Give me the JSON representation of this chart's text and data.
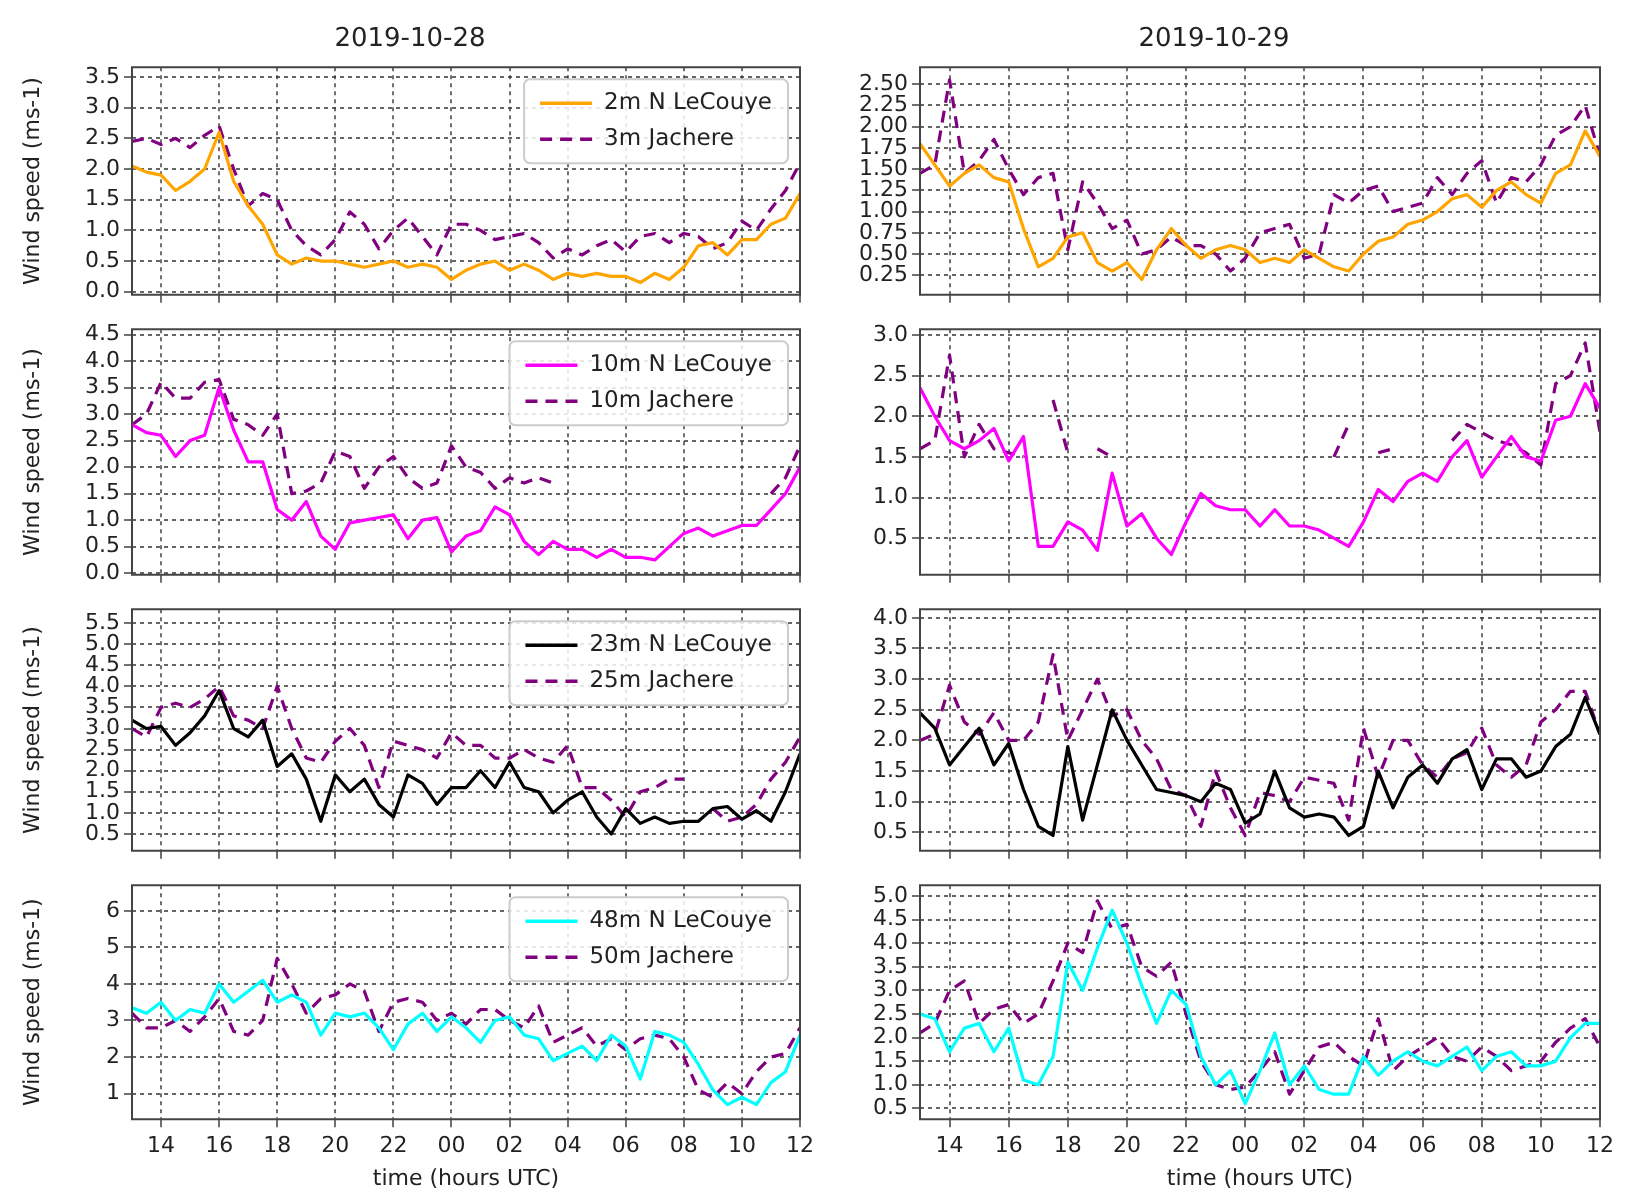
{
  "chart_data": [
    {
      "type": "line",
      "title": "2019-10-28",
      "ylabel": "Wind speed (ms-1)",
      "legend": "top right",
      "grid": true,
      "tick_labels": "y",
      "xlim": [
        "2019-10-28T13:00",
        "2019-10-29T12:00"
      ],
      "ylim": [
        -0.05,
        3.66
      ],
      "xticks": [
        {
          "value": "2019-10-28T14:00",
          "label": null
        },
        {
          "value": "2019-10-28T16:00",
          "label": null
        },
        {
          "value": "2019-10-28T18:00",
          "label": null
        },
        {
          "value": "2019-10-28T20:00",
          "label": null
        },
        {
          "value": "2019-10-28T22:00",
          "label": null
        },
        {
          "value": "2019-10-29T00:00",
          "label": null
        },
        {
          "value": "2019-10-29T02:00",
          "label": null
        },
        {
          "value": "2019-10-29T04:00",
          "label": null
        },
        {
          "value": "2019-10-29T06:00",
          "label": null
        },
        {
          "value": "2019-10-29T08:00",
          "label": null
        },
        {
          "value": "2019-10-29T10:00",
          "label": null
        },
        {
          "value": "2019-10-29T12:00",
          "label": null
        }
      ],
      "yticks": [
        {
          "value": 0,
          "label": "0.0"
        },
        0.5,
        {
          "value": 1,
          "label": "1.0"
        },
        1.5,
        {
          "value": 2,
          "label": "2.0"
        },
        2.5,
        {
          "value": 3,
          "label": "3.0"
        },
        3.5
      ],
      "x": [
        "2019-10-28T13:00",
        "2019-10-28T13:30",
        "2019-10-28T14:00",
        "2019-10-28T14:30",
        "2019-10-28T15:00",
        "2019-10-28T15:30",
        "2019-10-28T16:00",
        "2019-10-28T16:30",
        "2019-10-28T17:00",
        "2019-10-28T17:30",
        "2019-10-28T18:00",
        "2019-10-28T18:30",
        "2019-10-28T19:00",
        "2019-10-28T19:30",
        "2019-10-28T20:00",
        "2019-10-28T20:30",
        "2019-10-28T21:00",
        "2019-10-28T21:30",
        "2019-10-28T22:00",
        "2019-10-28T22:30",
        "2019-10-28T23:00",
        "2019-10-28T23:30",
        "2019-10-29T00:00",
        "2019-10-29T00:30",
        "2019-10-29T01:00",
        "2019-10-29T01:30",
        "2019-10-29T02:00",
        "2019-10-29T02:30",
        "2019-10-29T03:00",
        "2019-10-29T03:30",
        "2019-10-29T04:00",
        "2019-10-29T04:30",
        "2019-10-29T05:00",
        "2019-10-29T05:30",
        "2019-10-29T06:00",
        "2019-10-29T06:30",
        "2019-10-29T07:00",
        "2019-10-29T07:30",
        "2019-10-29T08:00",
        "2019-10-29T08:30",
        "2019-10-29T09:00",
        "2019-10-29T09:30",
        "2019-10-29T10:00",
        "2019-10-29T10:30",
        "2019-10-29T11:00",
        "2019-10-29T11:30",
        "2019-10-29T12:00"
      ],
      "series": [
        {
          "name": "2m N LeCouye",
          "color": "#ffa500",
          "line_style": "solid",
          "values": [
            2.05,
            1.95,
            1.9,
            1.65,
            1.8,
            2.0,
            2.6,
            1.8,
            1.4,
            1.1,
            0.6,
            0.45,
            0.55,
            0.5,
            0.5,
            0.45,
            0.4,
            0.45,
            0.5,
            0.4,
            0.45,
            0.4,
            0.2,
            0.35,
            0.45,
            0.5,
            0.35,
            0.45,
            0.35,
            0.2,
            0.3,
            0.25,
            0.3,
            0.25,
            0.25,
            0.15,
            0.3,
            0.2,
            0.4,
            0.75,
            0.8,
            0.6,
            0.85,
            0.85,
            1.1,
            1.2,
            1.6
          ]
        },
        {
          "name": "3m Jachere",
          "color": "#800080",
          "line_style": "dashed",
          "values": [
            2.45,
            2.5,
            2.4,
            2.5,
            2.35,
            2.55,
            2.7,
            2.0,
            1.4,
            1.6,
            1.5,
            1.0,
            0.75,
            0.6,
            0.85,
            1.3,
            1.1,
            0.7,
            1.0,
            1.2,
            0.9,
            0.6,
            1.1,
            1.1,
            1.0,
            0.85,
            0.9,
            0.95,
            0.8,
            0.55,
            0.7,
            0.6,
            0.75,
            0.85,
            0.65,
            0.9,
            0.95,
            0.8,
            0.95,
            0.9,
            0.7,
            0.8,
            1.15,
            1.0,
            1.35,
            1.65,
            2.1
          ]
        }
      ]
    },
    {
      "type": "line",
      "title": "2019-10-29",
      "grid": true,
      "tick_labels": "y",
      "xlim": [
        "2019-10-29T13:00",
        "2019-10-30T12:00"
      ],
      "ylim": [
        0.02,
        2.7
      ],
      "xticks": [
        {
          "value": "2019-10-29T14:00",
          "label": null
        },
        {
          "value": "2019-10-29T16:00",
          "label": null
        },
        {
          "value": "2019-10-29T18:00",
          "label": null
        },
        {
          "value": "2019-10-29T20:00",
          "label": null
        },
        {
          "value": "2019-10-29T22:00",
          "label": null
        },
        {
          "value": "2019-10-30T00:00",
          "label": null
        },
        {
          "value": "2019-10-30T02:00",
          "label": null
        },
        {
          "value": "2019-10-30T04:00",
          "label": null
        },
        {
          "value": "2019-10-30T06:00",
          "label": null
        },
        {
          "value": "2019-10-30T08:00",
          "label": null
        },
        {
          "value": "2019-10-30T10:00",
          "label": null
        },
        {
          "value": "2019-10-30T12:00",
          "label": null
        }
      ],
      "yticks": [
        0.25,
        {
          "value": 0.5,
          "label": "0.50"
        },
        0.75,
        {
          "value": 1,
          "label": "1.00"
        },
        1.25,
        {
          "value": 1.5,
          "label": "1.50"
        },
        1.75,
        {
          "value": 2,
          "label": "2.00"
        },
        2.25,
        {
          "value": 2.5,
          "label": "2.50"
        }
      ],
      "x": [
        "2019-10-29T13:00",
        "2019-10-29T13:30",
        "2019-10-29T14:00",
        "2019-10-29T14:30",
        "2019-10-29T15:00",
        "2019-10-29T15:30",
        "2019-10-29T16:00",
        "2019-10-29T16:30",
        "2019-10-29T17:00",
        "2019-10-29T17:30",
        "2019-10-29T18:00",
        "2019-10-29T18:30",
        "2019-10-29T19:00",
        "2019-10-29T19:30",
        "2019-10-29T20:00",
        "2019-10-29T20:30",
        "2019-10-29T21:00",
        "2019-10-29T21:30",
        "2019-10-29T22:00",
        "2019-10-29T22:30",
        "2019-10-29T23:00",
        "2019-10-29T23:30",
        "2019-10-30T00:00",
        "2019-10-30T00:30",
        "2019-10-30T01:00",
        "2019-10-30T01:30",
        "2019-10-30T02:00",
        "2019-10-30T02:30",
        "2019-10-30T03:00",
        "2019-10-30T03:30",
        "2019-10-30T04:00",
        "2019-10-30T04:30",
        "2019-10-30T05:00",
        "2019-10-30T05:30",
        "2019-10-30T06:00",
        "2019-10-30T06:30",
        "2019-10-30T07:00",
        "2019-10-30T07:30",
        "2019-10-30T08:00",
        "2019-10-30T08:30",
        "2019-10-30T09:00",
        "2019-10-30T09:30",
        "2019-10-30T10:00",
        "2019-10-30T10:30",
        "2019-10-30T11:00",
        "2019-10-30T11:30",
        "2019-10-30T12:00"
      ],
      "series": [
        {
          "color": "#ffa500",
          "line_style": "solid",
          "values": [
            1.8,
            1.55,
            1.3,
            1.45,
            1.55,
            1.4,
            1.35,
            0.8,
            0.35,
            0.45,
            0.7,
            0.75,
            0.4,
            0.3,
            0.4,
            0.2,
            0.55,
            0.8,
            0.6,
            0.45,
            0.55,
            0.6,
            0.55,
            0.4,
            0.45,
            0.4,
            0.55,
            0.45,
            0.35,
            0.3,
            0.5,
            0.65,
            0.7,
            0.85,
            0.9,
            1.0,
            1.15,
            1.2,
            1.05,
            1.25,
            1.35,
            1.2,
            1.1,
            1.45,
            1.55,
            1.95,
            1.65
          ]
        },
        {
          "color": "#800080",
          "line_style": "dashed",
          "values": [
            1.45,
            1.55,
            2.55,
            1.45,
            1.6,
            1.85,
            1.5,
            1.2,
            1.4,
            1.45,
            0.55,
            1.35,
            1.1,
            0.8,
            0.9,
            0.5,
            0.55,
            0.7,
            0.6,
            0.6,
            0.5,
            0.3,
            0.45,
            0.75,
            0.8,
            0.85,
            0.45,
            0.5,
            1.2,
            1.1,
            1.25,
            1.3,
            1.0,
            1.05,
            1.1,
            1.4,
            1.2,
            1.45,
            1.6,
            1.1,
            1.4,
            1.35,
            1.55,
            1.9,
            2.0,
            2.25,
            1.65
          ]
        }
      ]
    },
    {
      "type": "line",
      "ylabel": "Wind speed (ms-1)",
      "legend": "top right",
      "grid": true,
      "tick_labels": "y",
      "xlim": [
        "2019-10-28T13:00",
        "2019-10-29T12:00"
      ],
      "ylim": [
        -0.03,
        4.6
      ],
      "xticks": [
        {
          "value": "2019-10-28T14:00",
          "label": null
        },
        {
          "value": "2019-10-28T16:00",
          "label": null
        },
        {
          "value": "2019-10-28T18:00",
          "label": null
        },
        {
          "value": "2019-10-28T20:00",
          "label": null
        },
        {
          "value": "2019-10-28T22:00",
          "label": null
        },
        {
          "value": "2019-10-29T00:00",
          "label": null
        },
        {
          "value": "2019-10-29T02:00",
          "label": null
        },
        {
          "value": "2019-10-29T04:00",
          "label": null
        },
        {
          "value": "2019-10-29T06:00",
          "label": null
        },
        {
          "value": "2019-10-29T08:00",
          "label": null
        },
        {
          "value": "2019-10-29T10:00",
          "label": null
        },
        {
          "value": "2019-10-29T12:00",
          "label": null
        }
      ],
      "yticks": [
        {
          "value": 0,
          "label": "0.0"
        },
        0.5,
        {
          "value": 1,
          "label": "1.0"
        },
        1.5,
        {
          "value": 2,
          "label": "2.0"
        },
        2.5,
        {
          "value": 3,
          "label": "3.0"
        },
        3.5,
        {
          "value": 4,
          "label": "4.0"
        },
        4.5
      ],
      "x": [
        "2019-10-28T13:00",
        "2019-10-28T13:30",
        "2019-10-28T14:00",
        "2019-10-28T14:30",
        "2019-10-28T15:00",
        "2019-10-28T15:30",
        "2019-10-28T16:00",
        "2019-10-28T16:30",
        "2019-10-28T17:00",
        "2019-10-28T17:30",
        "2019-10-28T18:00",
        "2019-10-28T18:30",
        "2019-10-28T19:00",
        "2019-10-28T19:30",
        "2019-10-28T20:00",
        "2019-10-28T20:30",
        "2019-10-28T21:00",
        "2019-10-28T21:30",
        "2019-10-28T22:00",
        "2019-10-28T22:30",
        "2019-10-28T23:00",
        "2019-10-28T23:30",
        "2019-10-29T00:00",
        "2019-10-29T00:30",
        "2019-10-29T01:00",
        "2019-10-29T01:30",
        "2019-10-29T02:00",
        "2019-10-29T02:30",
        "2019-10-29T03:00",
        "2019-10-29T03:30",
        "2019-10-29T04:00",
        "2019-10-29T04:30",
        "2019-10-29T05:00",
        "2019-10-29T05:30",
        "2019-10-29T06:00",
        "2019-10-29T06:30",
        "2019-10-29T07:00",
        "2019-10-29T07:30",
        "2019-10-29T08:00",
        "2019-10-29T08:30",
        "2019-10-29T09:00",
        "2019-10-29T09:30",
        "2019-10-29T10:00",
        "2019-10-29T10:30",
        "2019-10-29T11:00",
        "2019-10-29T11:30",
        "2019-10-29T12:00"
      ],
      "series": [
        {
          "name": "10m N LeCouye",
          "color": "#ff00ff",
          "line_style": "solid",
          "values": [
            2.8,
            2.65,
            2.6,
            2.2,
            2.5,
            2.6,
            3.5,
            2.7,
            2.1,
            2.1,
            1.2,
            1.0,
            1.35,
            0.7,
            0.45,
            0.95,
            1.0,
            1.05,
            1.1,
            0.65,
            1.0,
            1.05,
            0.4,
            0.7,
            0.8,
            1.25,
            1.1,
            0.6,
            0.35,
            0.6,
            0.45,
            0.45,
            0.3,
            0.45,
            0.3,
            0.3,
            0.25,
            0.5,
            0.75,
            0.85,
            0.7,
            0.8,
            0.9,
            0.9,
            1.2,
            1.5,
            2.0
          ]
        },
        {
          "name": "10m Jachere",
          "color": "#800080",
          "line_style": "dashed",
          "values": [
            2.8,
            3.0,
            3.6,
            3.3,
            3.3,
            3.6,
            3.65,
            2.9,
            2.8,
            2.6,
            3.0,
            1.5,
            1.55,
            1.7,
            2.3,
            2.2,
            1.6,
            2.0,
            2.2,
            1.8,
            1.6,
            1.7,
            2.4,
            2.0,
            1.9,
            1.6,
            1.8,
            1.7,
            1.8,
            1.7,
            null,
            null,
            null,
            null,
            null,
            null,
            null,
            null,
            null,
            null,
            null,
            null,
            null,
            null,
            1.5,
            1.8,
            2.4
          ]
        }
      ]
    },
    {
      "type": "line",
      "grid": true,
      "tick_labels": "y",
      "xlim": [
        "2019-10-29T13:00",
        "2019-10-30T12:00"
      ],
      "ylim": [
        0.05,
        3.07
      ],
      "xticks": [
        {
          "value": "2019-10-29T14:00",
          "label": null
        },
        {
          "value": "2019-10-29T16:00",
          "label": null
        },
        {
          "value": "2019-10-29T18:00",
          "label": null
        },
        {
          "value": "2019-10-29T20:00",
          "label": null
        },
        {
          "value": "2019-10-29T22:00",
          "label": null
        },
        {
          "value": "2019-10-30T00:00",
          "label": null
        },
        {
          "value": "2019-10-30T02:00",
          "label": null
        },
        {
          "value": "2019-10-30T04:00",
          "label": null
        },
        {
          "value": "2019-10-30T06:00",
          "label": null
        },
        {
          "value": "2019-10-30T08:00",
          "label": null
        },
        {
          "value": "2019-10-30T10:00",
          "label": null
        },
        {
          "value": "2019-10-30T12:00",
          "label": null
        }
      ],
      "yticks": [
        0.5,
        {
          "value": 1,
          "label": "1.0"
        },
        1.5,
        {
          "value": 2,
          "label": "2.0"
        },
        2.5,
        {
          "value": 3,
          "label": "3.0"
        }
      ],
      "x": [
        "2019-10-29T13:00",
        "2019-10-29T13:30",
        "2019-10-29T14:00",
        "2019-10-29T14:30",
        "2019-10-29T15:00",
        "2019-10-29T15:30",
        "2019-10-29T16:00",
        "2019-10-29T16:30",
        "2019-10-29T17:00",
        "2019-10-29T17:30",
        "2019-10-29T18:00",
        "2019-10-29T18:30",
        "2019-10-29T19:00",
        "2019-10-29T19:30",
        "2019-10-29T20:00",
        "2019-10-29T20:30",
        "2019-10-29T21:00",
        "2019-10-29T21:30",
        "2019-10-29T22:00",
        "2019-10-29T22:30",
        "2019-10-29T23:00",
        "2019-10-29T23:30",
        "2019-10-30T00:00",
        "2019-10-30T00:30",
        "2019-10-30T01:00",
        "2019-10-30T01:30",
        "2019-10-30T02:00",
        "2019-10-30T02:30",
        "2019-10-30T03:00",
        "2019-10-30T03:30",
        "2019-10-30T04:00",
        "2019-10-30T04:30",
        "2019-10-30T05:00",
        "2019-10-30T05:30",
        "2019-10-30T06:00",
        "2019-10-30T06:30",
        "2019-10-30T07:00",
        "2019-10-30T07:30",
        "2019-10-30T08:00",
        "2019-10-30T08:30",
        "2019-10-30T09:00",
        "2019-10-30T09:30",
        "2019-10-30T10:00",
        "2019-10-30T10:30",
        "2019-10-30T11:00",
        "2019-10-30T11:30",
        "2019-10-30T12:00"
      ],
      "series": [
        {
          "color": "#ff00ff",
          "line_style": "solid",
          "values": [
            2.35,
            2.0,
            1.7,
            1.6,
            1.7,
            1.85,
            1.45,
            1.75,
            0.4,
            0.4,
            0.7,
            0.6,
            0.35,
            1.3,
            0.65,
            0.8,
            0.5,
            0.3,
            0.7,
            1.05,
            0.9,
            0.85,
            0.85,
            0.65,
            0.85,
            0.65,
            0.65,
            0.6,
            0.5,
            0.4,
            0.7,
            1.1,
            0.95,
            1.2,
            1.3,
            1.2,
            1.5,
            1.7,
            1.25,
            1.5,
            1.75,
            1.5,
            1.45,
            1.95,
            2.0,
            2.4,
            2.1
          ]
        },
        {
          "color": "#800080",
          "line_style": "dashed",
          "values": [
            1.6,
            1.7,
            2.75,
            1.5,
            1.9,
            1.6,
            1.55,
            1.5,
            null,
            2.2,
            1.55,
            null,
            1.6,
            1.5,
            null,
            null,
            null,
            null,
            null,
            null,
            null,
            null,
            null,
            null,
            null,
            null,
            null,
            null,
            1.5,
            1.9,
            null,
            1.55,
            1.6,
            null,
            null,
            null,
            1.7,
            1.9,
            1.8,
            1.7,
            1.65,
            1.55,
            1.4,
            2.4,
            2.5,
            2.9,
            1.8
          ]
        }
      ]
    },
    {
      "type": "line",
      "ylabel": "Wind speed (ms-1)",
      "legend": "top right",
      "grid": true,
      "tick_labels": "y",
      "xlim": [
        "2019-10-28T13:00",
        "2019-10-29T12:00"
      ],
      "ylim": [
        0.1,
        5.83
      ],
      "xticks": [
        {
          "value": "2019-10-28T14:00",
          "label": null
        },
        {
          "value": "2019-10-28T16:00",
          "label": null
        },
        {
          "value": "2019-10-28T18:00",
          "label": null
        },
        {
          "value": "2019-10-28T20:00",
          "label": null
        },
        {
          "value": "2019-10-28T22:00",
          "label": null
        },
        {
          "value": "2019-10-29T00:00",
          "label": null
        },
        {
          "value": "2019-10-29T02:00",
          "label": null
        },
        {
          "value": "2019-10-29T04:00",
          "label": null
        },
        {
          "value": "2019-10-29T06:00",
          "label": null
        },
        {
          "value": "2019-10-29T08:00",
          "label": null
        },
        {
          "value": "2019-10-29T10:00",
          "label": null
        },
        {
          "value": "2019-10-29T12:00",
          "label": null
        }
      ],
      "yticks": [
        0.5,
        {
          "value": 1,
          "label": "1.0"
        },
        1.5,
        {
          "value": 2,
          "label": "2.0"
        },
        2.5,
        {
          "value": 3,
          "label": "3.0"
        },
        3.5,
        {
          "value": 4,
          "label": "4.0"
        },
        4.5,
        {
          "value": 5,
          "label": "5.0"
        },
        5.5
      ],
      "x": [
        "2019-10-28T13:00",
        "2019-10-28T13:30",
        "2019-10-28T14:00",
        "2019-10-28T14:30",
        "2019-10-28T15:00",
        "2019-10-28T15:30",
        "2019-10-28T16:00",
        "2019-10-28T16:30",
        "2019-10-28T17:00",
        "2019-10-28T17:30",
        "2019-10-28T18:00",
        "2019-10-28T18:30",
        "2019-10-28T19:00",
        "2019-10-28T19:30",
        "2019-10-28T20:00",
        "2019-10-28T20:30",
        "2019-10-28T21:00",
        "2019-10-28T21:30",
        "2019-10-28T22:00",
        "2019-10-28T22:30",
        "2019-10-28T23:00",
        "2019-10-28T23:30",
        "2019-10-29T00:00",
        "2019-10-29T00:30",
        "2019-10-29T01:00",
        "2019-10-29T01:30",
        "2019-10-29T02:00",
        "2019-10-29T02:30",
        "2019-10-29T03:00",
        "2019-10-29T03:30",
        "2019-10-29T04:00",
        "2019-10-29T04:30",
        "2019-10-29T05:00",
        "2019-10-29T05:30",
        "2019-10-29T06:00",
        "2019-10-29T06:30",
        "2019-10-29T07:00",
        "2019-10-29T07:30",
        "2019-10-29T08:00",
        "2019-10-29T08:30",
        "2019-10-29T09:00",
        "2019-10-29T09:30",
        "2019-10-29T10:00",
        "2019-10-29T10:30",
        "2019-10-29T11:00",
        "2019-10-29T11:30",
        "2019-10-29T12:00"
      ],
      "series": [
        {
          "name": "23m N LeCouye",
          "color": "#000000",
          "line_style": "solid",
          "values": [
            3.2,
            3.0,
            3.05,
            2.6,
            2.9,
            3.3,
            3.9,
            3.0,
            2.8,
            3.2,
            2.1,
            2.4,
            1.8,
            0.8,
            1.9,
            1.5,
            1.8,
            1.2,
            0.9,
            1.9,
            1.7,
            1.2,
            1.6,
            1.6,
            2.0,
            1.6,
            2.2,
            1.6,
            1.5,
            1.0,
            1.3,
            1.5,
            0.9,
            0.5,
            1.1,
            0.75,
            0.9,
            0.75,
            0.8,
            0.8,
            1.1,
            1.15,
            0.85,
            1.05,
            0.8,
            1.5,
            2.4
          ]
        },
        {
          "name": "25m Jachere",
          "color": "#800080",
          "line_style": "dashed",
          "values": [
            3.0,
            2.8,
            3.5,
            3.6,
            3.5,
            3.7,
            4.0,
            3.3,
            3.2,
            3.0,
            4.0,
            3.0,
            2.3,
            2.2,
            2.7,
            3.0,
            2.6,
            1.6,
            2.7,
            2.6,
            2.5,
            2.3,
            2.9,
            2.6,
            2.6,
            2.3,
            2.3,
            2.5,
            2.3,
            2.2,
            2.6,
            1.6,
            1.6,
            1.3,
            0.9,
            1.5,
            1.6,
            1.8,
            1.8,
            null,
            1.1,
            0.8,
            0.9,
            1.2,
            1.8,
            2.2,
            2.8
          ]
        }
      ]
    },
    {
      "type": "line",
      "grid": true,
      "tick_labels": "y",
      "xlim": [
        "2019-10-29T13:00",
        "2019-10-30T12:00"
      ],
      "ylim": [
        0.2,
        4.14
      ],
      "xticks": [
        {
          "value": "2019-10-29T14:00",
          "label": null
        },
        {
          "value": "2019-10-29T16:00",
          "label": null
        },
        {
          "value": "2019-10-29T18:00",
          "label": null
        },
        {
          "value": "2019-10-29T20:00",
          "label": null
        },
        {
          "value": "2019-10-29T22:00",
          "label": null
        },
        {
          "value": "2019-10-30T00:00",
          "label": null
        },
        {
          "value": "2019-10-30T02:00",
          "label": null
        },
        {
          "value": "2019-10-30T04:00",
          "label": null
        },
        {
          "value": "2019-10-30T06:00",
          "label": null
        },
        {
          "value": "2019-10-30T08:00",
          "label": null
        },
        {
          "value": "2019-10-30T10:00",
          "label": null
        },
        {
          "value": "2019-10-30T12:00",
          "label": null
        }
      ],
      "yticks": [
        0.5,
        {
          "value": 1,
          "label": "1.0"
        },
        1.5,
        {
          "value": 2,
          "label": "2.0"
        },
        2.5,
        {
          "value": 3,
          "label": "3.0"
        },
        3.5,
        {
          "value": 4,
          "label": "4.0"
        }
      ],
      "x": [
        "2019-10-29T13:00",
        "2019-10-29T13:30",
        "2019-10-29T14:00",
        "2019-10-29T14:30",
        "2019-10-29T15:00",
        "2019-10-29T15:30",
        "2019-10-29T16:00",
        "2019-10-29T16:30",
        "2019-10-29T17:00",
        "2019-10-29T17:30",
        "2019-10-29T18:00",
        "2019-10-29T18:30",
        "2019-10-29T19:00",
        "2019-10-29T19:30",
        "2019-10-29T20:00",
        "2019-10-29T20:30",
        "2019-10-29T21:00",
        "2019-10-29T21:30",
        "2019-10-29T22:00",
        "2019-10-29T22:30",
        "2019-10-29T23:00",
        "2019-10-29T23:30",
        "2019-10-30T00:00",
        "2019-10-30T00:30",
        "2019-10-30T01:00",
        "2019-10-30T01:30",
        "2019-10-30T02:00",
        "2019-10-30T02:30",
        "2019-10-30T03:00",
        "2019-10-30T03:30",
        "2019-10-30T04:00",
        "2019-10-30T04:30",
        "2019-10-30T05:00",
        "2019-10-30T05:30",
        "2019-10-30T06:00",
        "2019-10-30T06:30",
        "2019-10-30T07:00",
        "2019-10-30T07:30",
        "2019-10-30T08:00",
        "2019-10-30T08:30",
        "2019-10-30T09:00",
        "2019-10-30T09:30",
        "2019-10-30T10:00",
        "2019-10-30T10:30",
        "2019-10-30T11:00",
        "2019-10-30T11:30",
        "2019-10-30T12:00"
      ],
      "series": [
        {
          "color": "#000000",
          "line_style": "solid",
          "values": [
            2.45,
            2.2,
            1.6,
            1.9,
            2.2,
            1.6,
            1.95,
            1.2,
            0.6,
            0.45,
            1.9,
            0.7,
            1.6,
            2.5,
            2.0,
            1.6,
            1.2,
            1.15,
            1.1,
            1.0,
            1.3,
            1.2,
            0.65,
            0.8,
            1.5,
            0.9,
            0.75,
            0.8,
            0.75,
            0.45,
            0.6,
            1.5,
            0.9,
            1.4,
            1.6,
            1.3,
            1.7,
            1.85,
            1.2,
            1.7,
            1.7,
            1.4,
            1.5,
            1.9,
            2.1,
            2.7,
            2.1
          ]
        },
        {
          "color": "#800080",
          "line_style": "dashed",
          "values": [
            2.0,
            2.1,
            2.9,
            2.3,
            2.1,
            2.45,
            2.0,
            2.0,
            2.3,
            3.4,
            2.0,
            2.5,
            3.0,
            2.4,
            2.5,
            2.0,
            1.7,
            1.2,
            1.1,
            0.6,
            1.5,
            0.9,
            0.45,
            1.15,
            1.1,
            1.0,
            1.4,
            1.35,
            1.3,
            0.7,
            2.2,
            1.4,
            2.0,
            2.0,
            1.6,
            1.4,
            1.7,
            1.8,
            2.2,
            1.6,
            1.4,
            1.6,
            2.3,
            2.5,
            2.8,
            2.8,
            2.1
          ]
        }
      ]
    },
    {
      "type": "line",
      "xlabel": "time (hours UTC)",
      "ylabel": "Wind speed (ms-1)",
      "legend": "top right",
      "grid": true,
      "xlim": [
        "2019-10-28T13:00",
        "2019-10-29T12:00"
      ],
      "ylim": [
        0.3,
        6.7
      ],
      "xticks": [
        {
          "value": "2019-10-28T14:00",
          "label": "14"
        },
        {
          "value": "2019-10-28T16:00",
          "label": "16"
        },
        {
          "value": "2019-10-28T18:00",
          "label": "18"
        },
        {
          "value": "2019-10-28T20:00",
          "label": "20"
        },
        {
          "value": "2019-10-28T22:00",
          "label": "22"
        },
        {
          "value": "2019-10-29T00:00",
          "label": "00"
        },
        {
          "value": "2019-10-29T02:00",
          "label": "02"
        },
        {
          "value": "2019-10-29T04:00",
          "label": "04"
        },
        {
          "value": "2019-10-29T06:00",
          "label": "06"
        },
        {
          "value": "2019-10-29T08:00",
          "label": "08"
        },
        {
          "value": "2019-10-29T10:00",
          "label": "10"
        },
        {
          "value": "2019-10-29T12:00",
          "label": "12"
        }
      ],
      "yticks": [
        1,
        2,
        3,
        4,
        5,
        6
      ],
      "x": [
        "2019-10-28T13:00",
        "2019-10-28T13:30",
        "2019-10-28T14:00",
        "2019-10-28T14:30",
        "2019-10-28T15:00",
        "2019-10-28T15:30",
        "2019-10-28T16:00",
        "2019-10-28T16:30",
        "2019-10-28T17:00",
        "2019-10-28T17:30",
        "2019-10-28T18:00",
        "2019-10-28T18:30",
        "2019-10-28T19:00",
        "2019-10-28T19:30",
        "2019-10-28T20:00",
        "2019-10-28T20:30",
        "2019-10-28T21:00",
        "2019-10-28T21:30",
        "2019-10-28T22:00",
        "2019-10-28T22:30",
        "2019-10-28T23:00",
        "2019-10-28T23:30",
        "2019-10-29T00:00",
        "2019-10-29T00:30",
        "2019-10-29T01:00",
        "2019-10-29T01:30",
        "2019-10-29T02:00",
        "2019-10-29T02:30",
        "2019-10-29T03:00",
        "2019-10-29T03:30",
        "2019-10-29T04:00",
        "2019-10-29T04:30",
        "2019-10-29T05:00",
        "2019-10-29T05:30",
        "2019-10-29T06:00",
        "2019-10-29T06:30",
        "2019-10-29T07:00",
        "2019-10-29T07:30",
        "2019-10-29T08:00",
        "2019-10-29T08:30",
        "2019-10-29T09:00",
        "2019-10-29T09:30",
        "2019-10-29T10:00",
        "2019-10-29T10:30",
        "2019-10-29T11:00",
        "2019-10-29T11:30",
        "2019-10-29T12:00"
      ],
      "series": [
        {
          "name": "48m N LeCouye",
          "color": "#00ffff",
          "line_style": "solid",
          "values": [
            3.35,
            3.2,
            3.5,
            3.0,
            3.3,
            3.2,
            4.0,
            3.5,
            3.8,
            4.1,
            3.5,
            3.7,
            3.5,
            2.6,
            3.2,
            3.1,
            3.2,
            2.8,
            2.2,
            2.9,
            3.2,
            2.7,
            3.1,
            2.8,
            2.4,
            3.0,
            3.1,
            2.6,
            2.5,
            1.9,
            2.1,
            2.3,
            1.9,
            2.6,
            2.3,
            1.4,
            2.7,
            2.6,
            2.4,
            1.8,
            1.1,
            0.7,
            0.9,
            0.7,
            1.3,
            1.6,
            2.6
          ]
        },
        {
          "name": "50m Jachere",
          "color": "#800080",
          "line_style": "dashed",
          "values": [
            3.2,
            2.8,
            2.8,
            3.0,
            2.7,
            3.1,
            3.6,
            2.7,
            2.6,
            3.0,
            4.7,
            4.0,
            3.2,
            3.6,
            3.7,
            4.0,
            3.8,
            2.7,
            3.5,
            3.6,
            3.5,
            3.0,
            3.2,
            2.9,
            3.3,
            3.3,
            3.0,
            2.8,
            3.4,
            2.4,
            2.6,
            2.8,
            2.3,
            2.5,
            2.2,
            2.5,
            2.6,
            2.5,
            2.0,
            1.1,
            0.9,
            1.3,
            1.0,
            1.6,
            2.0,
            2.1,
            2.8
          ]
        }
      ]
    },
    {
      "type": "line",
      "xlabel": "time (hours UTC)",
      "grid": true,
      "xlim": [
        "2019-10-29T13:00",
        "2019-10-30T12:00"
      ],
      "ylim": [
        0.27,
        5.23
      ],
      "xticks": [
        {
          "value": "2019-10-29T14:00",
          "label": "14"
        },
        {
          "value": "2019-10-29T16:00",
          "label": "16"
        },
        {
          "value": "2019-10-29T18:00",
          "label": "18"
        },
        {
          "value": "2019-10-29T20:00",
          "label": "20"
        },
        {
          "value": "2019-10-29T22:00",
          "label": "22"
        },
        {
          "value": "2019-10-30T00:00",
          "label": "00"
        },
        {
          "value": "2019-10-30T02:00",
          "label": "02"
        },
        {
          "value": "2019-10-30T04:00",
          "label": "04"
        },
        {
          "value": "2019-10-30T06:00",
          "label": "06"
        },
        {
          "value": "2019-10-30T08:00",
          "label": "08"
        },
        {
          "value": "2019-10-30T10:00",
          "label": "10"
        },
        {
          "value": "2019-10-30T12:00",
          "label": "12"
        }
      ],
      "yticks": [
        0.5,
        {
          "value": 1,
          "label": "1.0"
        },
        1.5,
        {
          "value": 2,
          "label": "2.0"
        },
        2.5,
        {
          "value": 3,
          "label": "3.0"
        },
        3.5,
        {
          "value": 4,
          "label": "4.0"
        },
        4.5,
        {
          "value": 5,
          "label": "5.0"
        }
      ],
      "x": [
        "2019-10-29T13:00",
        "2019-10-29T13:30",
        "2019-10-29T14:00",
        "2019-10-29T14:30",
        "2019-10-29T15:00",
        "2019-10-29T15:30",
        "2019-10-29T16:00",
        "2019-10-29T16:30",
        "2019-10-29T17:00",
        "2019-10-29T17:30",
        "2019-10-29T18:00",
        "2019-10-29T18:30",
        "2019-10-29T19:00",
        "2019-10-29T19:30",
        "2019-10-29T20:00",
        "2019-10-29T20:30",
        "2019-10-29T21:00",
        "2019-10-29T21:30",
        "2019-10-29T22:00",
        "2019-10-29T22:30",
        "2019-10-29T23:00",
        "2019-10-29T23:30",
        "2019-10-30T00:00",
        "2019-10-30T00:30",
        "2019-10-30T01:00",
        "2019-10-30T01:30",
        "2019-10-30T02:00",
        "2019-10-30T02:30",
        "2019-10-30T03:00",
        "2019-10-30T03:30",
        "2019-10-30T04:00",
        "2019-10-30T04:30",
        "2019-10-30T05:00",
        "2019-10-30T05:30",
        "2019-10-30T06:00",
        "2019-10-30T06:30",
        "2019-10-30T07:00",
        "2019-10-30T07:30",
        "2019-10-30T08:00",
        "2019-10-30T08:30",
        "2019-10-30T09:00",
        "2019-10-30T09:30",
        "2019-10-30T10:00",
        "2019-10-30T10:30",
        "2019-10-30T11:00",
        "2019-10-30T11:30",
        "2019-10-30T12:00"
      ],
      "series": [
        {
          "color": "#00ffff",
          "line_style": "solid",
          "values": [
            2.5,
            2.4,
            1.7,
            2.2,
            2.3,
            1.7,
            2.2,
            1.1,
            1.0,
            1.6,
            3.6,
            3.0,
            3.9,
            4.7,
            4.0,
            3.1,
            2.3,
            3.0,
            2.7,
            1.6,
            1.0,
            1.3,
            0.6,
            1.3,
            2.1,
            1.0,
            1.4,
            0.9,
            0.8,
            0.8,
            1.6,
            1.2,
            1.5,
            1.7,
            1.5,
            1.4,
            1.6,
            1.8,
            1.3,
            1.6,
            1.7,
            1.4,
            1.4,
            1.5,
            2.0,
            2.3,
            2.3
          ]
        },
        {
          "color": "#800080",
          "line_style": "dashed",
          "values": [
            2.1,
            2.3,
            3.0,
            3.2,
            2.3,
            2.6,
            2.7,
            2.3,
            2.5,
            3.2,
            4.0,
            3.8,
            4.9,
            4.3,
            4.4,
            3.5,
            3.3,
            3.6,
            2.5,
            1.5,
            1.0,
            0.9,
            0.95,
            1.3,
            1.7,
            0.8,
            1.3,
            1.8,
            1.9,
            1.6,
            1.4,
            2.4,
            1.3,
            1.6,
            1.8,
            2.0,
            1.6,
            1.5,
            1.8,
            1.6,
            1.3,
            1.4,
            1.5,
            1.9,
            2.2,
            2.4,
            1.8
          ]
        }
      ]
    }
  ]
}
